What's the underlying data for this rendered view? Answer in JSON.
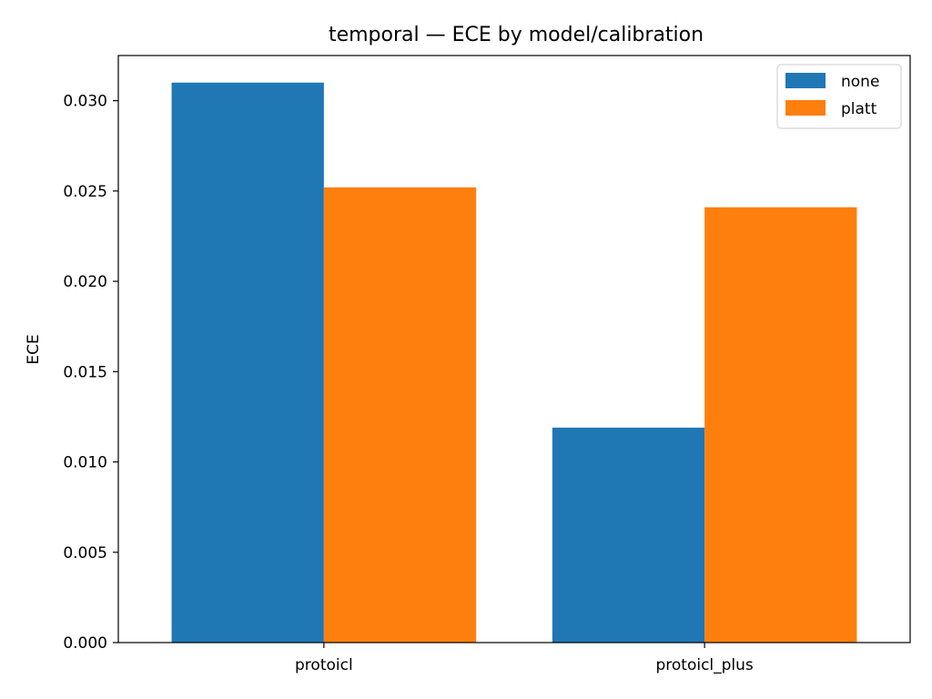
{
  "chart_data": {
    "type": "bar",
    "title": "temporal — ECE by model/calibration",
    "xlabel": "",
    "ylabel": "ECE",
    "categories": [
      "protoicl",
      "protoicl_plus"
    ],
    "series": [
      {
        "name": "none",
        "color": "#1f77b4",
        "values": [
          0.031,
          0.0119
        ]
      },
      {
        "name": "platt",
        "color": "#ff7f0e",
        "values": [
          0.0252,
          0.0241
        ]
      }
    ],
    "ylim": [
      0,
      0.0325
    ],
    "yticks": [
      0.0,
      0.005,
      0.01,
      0.015,
      0.02,
      0.025,
      0.03
    ],
    "ytick_labels": [
      "0.000",
      "0.005",
      "0.010",
      "0.015",
      "0.020",
      "0.025",
      "0.030"
    ],
    "legend_position": "top-right",
    "grid": false
  }
}
